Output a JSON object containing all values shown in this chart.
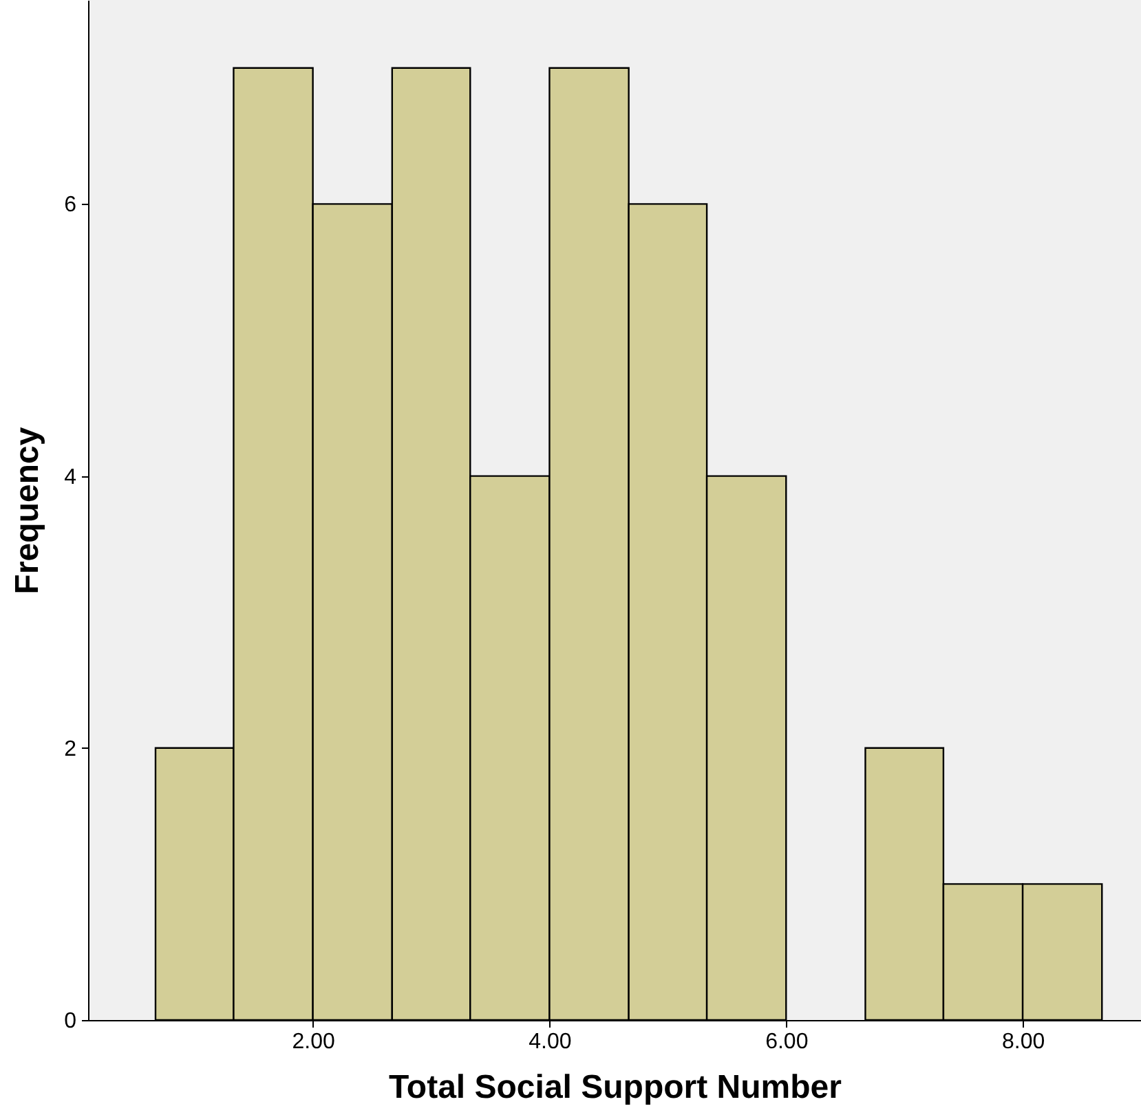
{
  "chart_data": {
    "type": "histogram",
    "xlabel": "Total Social Support Number",
    "ylabel": "Frequency",
    "bins": [
      0.67,
      1.33,
      2,
      2.67,
      3.33,
      4,
      4.67,
      5.33,
      6,
      6.67,
      7.33,
      8,
      8.67
    ],
    "values": [
      2,
      7,
      6,
      7,
      4,
      7,
      6,
      4,
      0,
      2,
      1,
      1
    ],
    "color": "#d3ce97",
    "xlim": [
      0.1,
      9.0
    ],
    "xticks": [
      {
        "value": 2,
        "label": "2.00"
      },
      {
        "value": 4,
        "label": "4.00"
      },
      {
        "value": 6,
        "label": "6.00"
      },
      {
        "value": 8,
        "label": "8.00"
      }
    ],
    "ylim": [
      0,
      7.5
    ],
    "yticks": [
      0,
      2,
      4,
      6
    ],
    "grid": false
  }
}
